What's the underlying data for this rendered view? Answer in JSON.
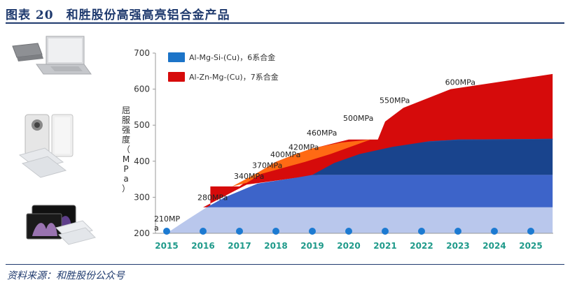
{
  "header": {
    "title": "图表 20　和胜股份高强高亮铝合金产品"
  },
  "footer": {
    "source": "资料来源：和胜股份公众号"
  },
  "products": [
    {
      "name": "laptop"
    },
    {
      "name": "foldable-phone"
    },
    {
      "name": "tablet"
    }
  ],
  "colors": {
    "band1": "#b9c7ec",
    "band2": "#3d64c9",
    "band3": "#274f9e",
    "band4": "#19448d",
    "red": "#d60b0b",
    "orange": "#ff6a14",
    "dot": "#1c7ad1",
    "year_text": "#1f9a8a",
    "axis_text": "#333333"
  },
  "chart_data": {
    "type": "area",
    "ylabel": "屈服强度（MPa）",
    "ylim": [
      200,
      700
    ],
    "yticks": [
      200,
      300,
      400,
      500,
      600,
      700
    ],
    "x": [
      "2015",
      "2016",
      "2017",
      "2018",
      "2019",
      "2020",
      "2021",
      "2022",
      "2023",
      "2024",
      "2025"
    ],
    "legend": [
      {
        "label": "Al-Mg-Si-(Cu)，6系合金",
        "color": "#1c74c8"
      },
      {
        "label": "Al-Zn-Mg-(Cu)，7系合金",
        "color": "#d60b0b"
      }
    ],
    "annotations": [
      {
        "x": "2015",
        "y": 210,
        "label": "210MPa"
      },
      {
        "x": "2016",
        "y": 280,
        "label": "280MPa"
      },
      {
        "x": "2017",
        "y": 340,
        "label": "340MPa"
      },
      {
        "x": "2017.5",
        "y": 370,
        "label": "370MPa"
      },
      {
        "x": "2018",
        "y": 400,
        "label": "400MPa"
      },
      {
        "x": "2018.5",
        "y": 420,
        "label": "420MPa"
      },
      {
        "x": "2019",
        "y": 460,
        "label": "460MPa"
      },
      {
        "x": "2020",
        "y": 500,
        "label": "500MPa"
      },
      {
        "x": "2021",
        "y": 550,
        "label": "550MPa"
      },
      {
        "x": "2022.8",
        "y": 600,
        "label": "600MPa"
      }
    ],
    "series": [
      {
        "name": "6系合金",
        "x": [
          2015,
          2016,
          2017,
          2018,
          2019,
          2020,
          2021,
          2022,
          2023,
          2024,
          2025
        ],
        "values": [
          200,
          272,
          330,
          355,
          365,
          420,
          440,
          455,
          460,
          462,
          462
        ]
      },
      {
        "name": "7系合金",
        "x": [
          2015,
          2016,
          2017,
          2018,
          2019,
          2020,
          2021,
          2022,
          2023,
          2024,
          2025
        ],
        "values": [
          200,
          272,
          335,
          365,
          400,
          430,
          460,
          550,
          580,
          610,
          645
        ]
      }
    ]
  }
}
